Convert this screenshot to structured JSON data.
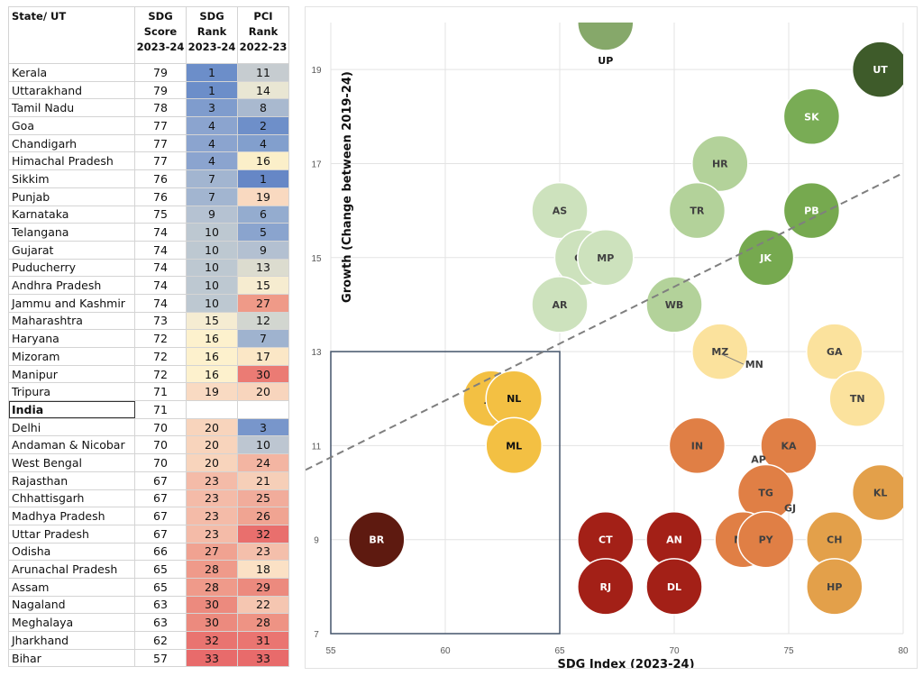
{
  "table": {
    "headers": {
      "state": "State/ UT",
      "score": [
        "SDG",
        "Score",
        "2023-24"
      ],
      "rank": [
        "SDG",
        "Rank",
        "2023-24"
      ],
      "pci": [
        "PCI Rank",
        "2022-23"
      ]
    },
    "rows": [
      {
        "state": "Kerala",
        "score": "79",
        "rank": "1",
        "pci": "11",
        "rank_color": "#6c8ec9",
        "pci_color": "#c6ccd0"
      },
      {
        "state": "Uttarakhand",
        "score": "79",
        "rank": "1",
        "pci": "14",
        "rank_color": "#6c8ec9",
        "pci_color": "#e9e6d3"
      },
      {
        "state": "Tamil Nadu",
        "score": "78",
        "rank": "3",
        "pci": "8",
        "rank_color": "#7f9ccd",
        "pci_color": "#a9b9cf"
      },
      {
        "state": "Goa",
        "score": "77",
        "rank": "4",
        "pci": "2",
        "rank_color": "#8ba4cf",
        "pci_color": "#6e8fc9"
      },
      {
        "state": "Chandigarh",
        "score": "77",
        "rank": "4",
        "pci": "4",
        "rank_color": "#8ba4cf",
        "pci_color": "#829fcd"
      },
      {
        "state": "Himachal Pradesh",
        "score": "77",
        "rank": "4",
        "pci": "16",
        "rank_color": "#8ba4cf",
        "pci_color": "#fbefc9"
      },
      {
        "state": "Sikkim",
        "score": "76",
        "rank": "7",
        "pci": "1",
        "rank_color": "#a2b5d0",
        "pci_color": "#6687c6"
      },
      {
        "state": "Punjab",
        "score": "76",
        "rank": "7",
        "pci": "19",
        "rank_color": "#a2b5d0",
        "pci_color": "#f9d9c0"
      },
      {
        "state": "Karnataka",
        "score": "75",
        "rank": "9",
        "pci": "6",
        "rank_color": "#b5c2d2",
        "pci_color": "#94accf"
      },
      {
        "state": "Telangana",
        "score": "74",
        "rank": "10",
        "pci": "5",
        "rank_color": "#bdc8d1",
        "pci_color": "#8aa4ce"
      },
      {
        "state": "Gujarat",
        "score": "74",
        "rank": "10",
        "pci": "9",
        "rank_color": "#bdc8d1",
        "pci_color": "#b3c0d1"
      },
      {
        "state": "Puducherry",
        "score": "74",
        "rank": "10",
        "pci": "13",
        "rank_color": "#bdc8d1",
        "pci_color": "#dcdccf"
      },
      {
        "state": "Andhra Pradesh",
        "score": "74",
        "rank": "10",
        "pci": "15",
        "rank_color": "#bdc8d1",
        "pci_color": "#f6ecd0"
      },
      {
        "state": "Jammu and Kashmir",
        "score": "74",
        "rank": "10",
        "pci": "27",
        "rank_color": "#bdc8d1",
        "pci_color": "#ef9a88"
      },
      {
        "state": "Maharashtra",
        "score": "73",
        "rank": "15",
        "pci": "12",
        "rank_color": "#f5ecd2",
        "pci_color": "#d2d6d0"
      },
      {
        "state": "Haryana",
        "score": "72",
        "rank": "16",
        "pci": "7",
        "rank_color": "#fdf1cd",
        "pci_color": "#9fb3cf"
      },
      {
        "state": "Mizoram",
        "score": "72",
        "rank": "16",
        "pci": "17",
        "rank_color": "#fdf1cd",
        "pci_color": "#fbe7c6"
      },
      {
        "state": "Manipur",
        "score": "72",
        "rank": "16",
        "pci": "30",
        "rank_color": "#fdf1cd",
        "pci_color": "#eb7b74"
      },
      {
        "state": "Tripura",
        "score": "71",
        "rank": "19",
        "pci": "20",
        "rank_color": "#f9dac2",
        "pci_color": "#f8d5bd"
      },
      {
        "state": "India",
        "score": "71",
        "rank": "",
        "pci": "",
        "rank_color": "#ffffff",
        "pci_color": "#ffffff",
        "bold": true
      },
      {
        "state": "Delhi",
        "score": "70",
        "rank": "20",
        "pci": "3",
        "rank_color": "#f8d4bc",
        "pci_color": "#7896cb"
      },
      {
        "state": "Andaman & Nicobar",
        "score": "70",
        "rank": "20",
        "pci": "10",
        "rank_color": "#f8d4bc",
        "pci_color": "#bdc6d1"
      },
      {
        "state": "West Bengal",
        "score": "70",
        "rank": "20",
        "pci": "24",
        "rank_color": "#f8d4bc",
        "pci_color": "#f3b5a2"
      },
      {
        "state": "Rajasthan",
        "score": "67",
        "rank": "23",
        "pci": "21",
        "rank_color": "#f4bba8",
        "pci_color": "#f6cfb8"
      },
      {
        "state": "Chhattisgarh",
        "score": "67",
        "rank": "23",
        "pci": "25",
        "rank_color": "#f4bba8",
        "pci_color": "#f1ac9b"
      },
      {
        "state": "Madhya Pradesh",
        "score": "67",
        "rank": "23",
        "pci": "26",
        "rank_color": "#f4bba8",
        "pci_color": "#f0a492"
      },
      {
        "state": "Uttar Pradesh",
        "score": "67",
        "rank": "23",
        "pci": "32",
        "rank_color": "#f4bba8",
        "pci_color": "#e96f6d"
      },
      {
        "state": "Odisha",
        "score": "66",
        "rank": "27",
        "pci": "23",
        "rank_color": "#f0a291",
        "pci_color": "#f4bfab"
      },
      {
        "state": "Arunachal Pradesh",
        "score": "65",
        "rank": "28",
        "pci": "18",
        "rank_color": "#ef9a8a",
        "pci_color": "#fbe1c5"
      },
      {
        "state": "Assam",
        "score": "65",
        "rank": "28",
        "pci": "29",
        "rank_color": "#ef9a8a",
        "pci_color": "#ec8a7e"
      },
      {
        "state": "Nagaland",
        "score": "63",
        "rank": "30",
        "pci": "22",
        "rank_color": "#ec8a7e",
        "pci_color": "#f5c6b1"
      },
      {
        "state": "Meghalaya",
        "score": "63",
        "rank": "30",
        "pci": "28",
        "rank_color": "#ec8a7e",
        "pci_color": "#ee9384"
      },
      {
        "state": "Jharkhand",
        "score": "62",
        "rank": "32",
        "pci": "31",
        "rank_color": "#e97470",
        "pci_color": "#ea7571"
      },
      {
        "state": "Bihar",
        "score": "57",
        "rank": "33",
        "pci": "33",
        "rank_color": "#e86b6b",
        "pci_color": "#e86b6b"
      }
    ]
  },
  "chart_data": {
    "type": "scatter",
    "subtype": "bubble",
    "xlabel": "SDG Index (2023-24)",
    "ylabel": "Growth (Change between 2019-24)",
    "xlim": [
      55,
      80
    ],
    "ylim": [
      7,
      20
    ],
    "x_ticks": [
      55,
      60,
      65,
      70,
      75,
      80
    ],
    "y_ticks": [
      7,
      9,
      11,
      13,
      15,
      17,
      19
    ],
    "grid": true,
    "legend": "none",
    "points": [
      {
        "label": "UP",
        "x": 67,
        "y": 20,
        "color": "#86a86a",
        "text_color": "#111111",
        "label_below": true
      },
      {
        "label": "UT",
        "x": 79,
        "y": 19,
        "color": "#3e5b2a",
        "text_color": "#ffffff"
      },
      {
        "label": "SK",
        "x": 76,
        "y": 18,
        "color": "#79ac55",
        "text_color": "#ffffff"
      },
      {
        "label": "HR",
        "x": 72,
        "y": 17,
        "color": "#b3d29a",
        "text_color": "#404040"
      },
      {
        "label": "AS",
        "x": 65,
        "y": 16,
        "color": "#cde2bd",
        "text_color": "#404040"
      },
      {
        "label": "TR",
        "x": 71,
        "y": 16,
        "color": "#b3d29a",
        "text_color": "#404040"
      },
      {
        "label": "PB",
        "x": 76,
        "y": 16,
        "color": "#76a94f",
        "text_color": "#ffffff"
      },
      {
        "label": "OD",
        "x": 66,
        "y": 15,
        "color": "#cde2bd",
        "text_color": "#404040"
      },
      {
        "label": "MP",
        "x": 67,
        "y": 15,
        "color": "#cde2bd",
        "text_color": "#404040"
      },
      {
        "label": "JK",
        "x": 74,
        "y": 15,
        "color": "#76a94f",
        "text_color": "#ffffff"
      },
      {
        "label": "AR",
        "x": 65,
        "y": 14,
        "color": "#cde2bd",
        "text_color": "#404040"
      },
      {
        "label": "WB",
        "x": 70,
        "y": 14,
        "color": "#b3d29a",
        "text_color": "#404040"
      },
      {
        "label": "MZ",
        "x": 72,
        "y": 13,
        "color": "#fbe29d",
        "text_color": "#404040"
      },
      {
        "label": "GA",
        "x": 77,
        "y": 13,
        "color": "#fbe29d",
        "text_color": "#404040"
      },
      {
        "label": "JH",
        "x": 62,
        "y": 12,
        "color": "#f3c043",
        "text_color": "#111111"
      },
      {
        "label": "NL",
        "x": 63,
        "y": 12,
        "color": "#f3c043",
        "text_color": "#111111"
      },
      {
        "label": "TN",
        "x": 78,
        "y": 12,
        "color": "#fbe29d",
        "text_color": "#404040"
      },
      {
        "label": "ML",
        "x": 63,
        "y": 11,
        "color": "#f3c043",
        "text_color": "#111111"
      },
      {
        "label": "IN",
        "x": 71,
        "y": 11,
        "color": "#e07f45",
        "text_color": "#404040"
      },
      {
        "label": "KA",
        "x": 75,
        "y": 11,
        "color": "#e07f45",
        "text_color": "#404040"
      },
      {
        "label": "TG",
        "x": 74,
        "y": 10,
        "color": "#e07f45",
        "text_color": "#404040"
      },
      {
        "label": "KL",
        "x": 79,
        "y": 10,
        "color": "#e3a04a",
        "text_color": "#404040"
      },
      {
        "label": "BR",
        "x": 57,
        "y": 9,
        "color": "#5e1a10",
        "text_color": "#ffffff"
      },
      {
        "label": "CT",
        "x": 67,
        "y": 9,
        "color": "#a32017",
        "text_color": "#ffffff"
      },
      {
        "label": "AN",
        "x": 70,
        "y": 9,
        "color": "#a32017",
        "text_color": "#ffffff"
      },
      {
        "label": "MH",
        "x": 73,
        "y": 9,
        "color": "#e07f45",
        "text_color": "#404040"
      },
      {
        "label": "PY",
        "x": 74,
        "y": 9,
        "color": "#e07f45",
        "text_color": "#404040"
      },
      {
        "label": "CH",
        "x": 77,
        "y": 9,
        "color": "#e3a04a",
        "text_color": "#404040"
      },
      {
        "label": "RJ",
        "x": 67,
        "y": 8,
        "color": "#a32017",
        "text_color": "#ffffff"
      },
      {
        "label": "DL",
        "x": 70,
        "y": 8,
        "color": "#a32017",
        "text_color": "#ffffff"
      },
      {
        "label": "HP",
        "x": 77,
        "y": 8,
        "color": "#e3a04a",
        "text_color": "#404040"
      }
    ],
    "overlapping_labels": [
      {
        "label": "MN",
        "x": 72,
        "y": 13,
        "note": "same point as MZ, leader line"
      },
      {
        "label": "AP",
        "x": 74,
        "y": 10,
        "note": "same point as TG"
      },
      {
        "label": "GJ",
        "x": 74,
        "y": 10,
        "note": "same point as TG"
      }
    ],
    "trendline": {
      "style": "dashed",
      "color": "#7f7f7f",
      "x": [
        55,
        80
      ],
      "y": [
        10.75,
        16.8
      ]
    },
    "highlight_box": {
      "x": [
        55,
        65
      ],
      "y": [
        7,
        13
      ],
      "color": "#44546a"
    }
  }
}
